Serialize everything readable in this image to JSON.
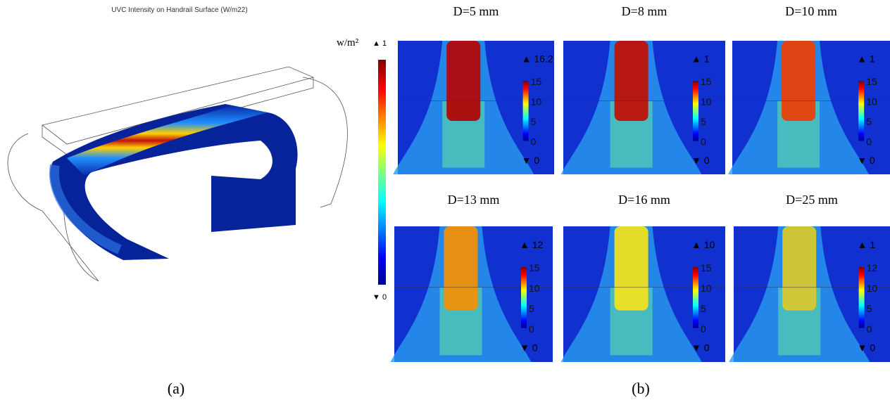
{
  "panel_a": {
    "title": "UVC Intensity on Handrail Surface (W/m22)",
    "unit": "w/m²",
    "max_label": "▲ 1",
    "min_label": "▼ 0",
    "caption": "(a)"
  },
  "panel_b": {
    "caption": "(b)",
    "panels": [
      {
        "label": "D=5 mm",
        "max_label": "▲ 16.2",
        "colorbar_labels": [
          "15",
          "10",
          "5",
          "0"
        ],
        "min_label": "▼ 0"
      },
      {
        "label": "D=8 mm",
        "max_label": "▲ 1",
        "colorbar_labels": [
          "15",
          "10",
          "5",
          "0"
        ],
        "min_label": "▼ 0"
      },
      {
        "label": "D=10 mm",
        "max_label": "▲ 1",
        "colorbar_labels": [
          "15",
          "10",
          "5",
          "0"
        ],
        "min_label": "▼ 0"
      },
      {
        "label": "D=13 mm",
        "max_label": "▲ 12",
        "colorbar_labels": [
          "15",
          "10",
          "5",
          "0"
        ],
        "min_label": "▼ 0"
      },
      {
        "label": "D=16 mm",
        "max_label": "▲ 10",
        "colorbar_labels": [
          "15",
          "10",
          "5",
          "0"
        ],
        "min_label": "▼ 0"
      },
      {
        "label": "D=25 mm",
        "max_label": "▲ 1",
        "colorbar_labels": [
          "12",
          "10",
          "5",
          "0"
        ],
        "min_label": "▼ 0"
      }
    ]
  }
}
